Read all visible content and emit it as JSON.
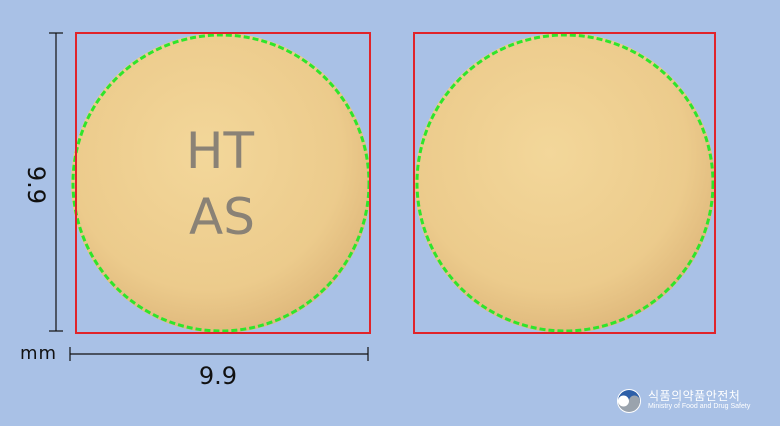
{
  "tablet": {
    "front_imprint_line1": "HT",
    "front_imprint_line2": "AS",
    "color": "#ecc98a",
    "imprint_color": "#8a8276"
  },
  "dimensions": {
    "height": "9.9",
    "width": "9.9",
    "unit": "mm"
  },
  "logo": {
    "korean": "식품의약품안전처",
    "english": "Ministry of Food and Drug Safety"
  },
  "colors": {
    "background": "#a9c1e6",
    "bounding_box": "#e0242a",
    "contour": "#2ee52b"
  }
}
